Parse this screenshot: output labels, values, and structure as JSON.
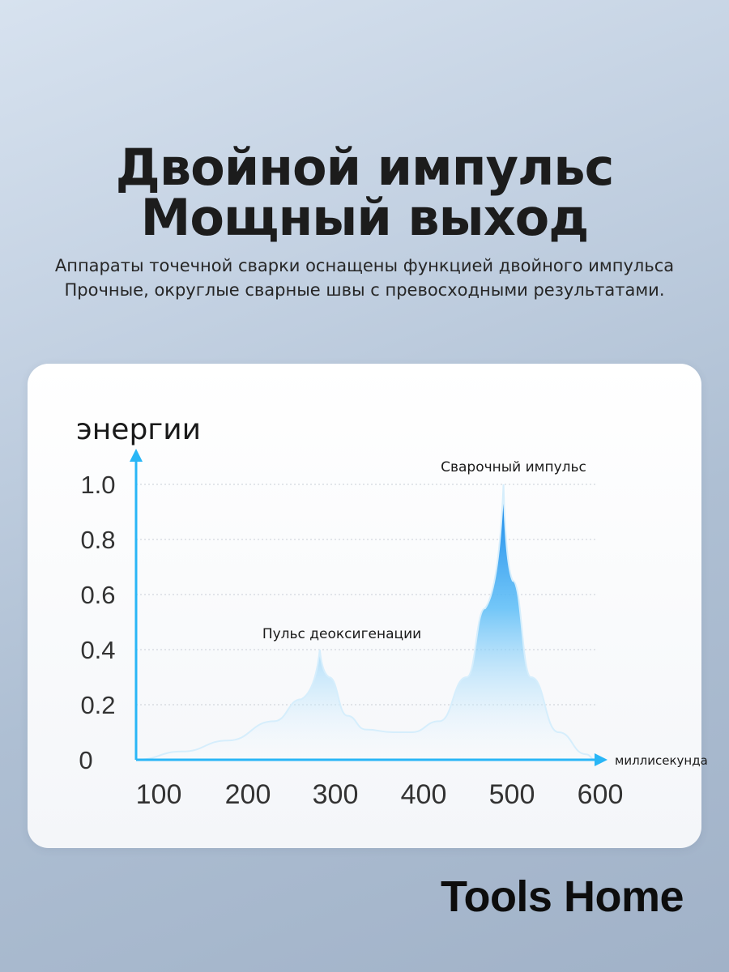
{
  "header": {
    "title_line1": "Двойной импульс",
    "title_line2": "Мощный выход",
    "subtitle_line1": "Аппараты точечной сварки оснащены функцией двойного импульса",
    "subtitle_line2": "Прочные, округлые сварные швы с превосходными результатами."
  },
  "brand": "Tools Home",
  "chart_data": {
    "type": "area",
    "ylabel": "энергии",
    "xlabel": "миллисекунда",
    "x_ticks": [
      "100",
      "200",
      "300",
      "400",
      "500",
      "600"
    ],
    "y_ticks": [
      "0",
      "0.2",
      "0.4",
      "0.6",
      "0.8",
      "1.0"
    ],
    "xlim": [
      100,
      600
    ],
    "ylim": [
      0,
      1.0
    ],
    "grid": "horizontal dotted",
    "series": [
      {
        "x": [
          100,
          150,
          200,
          250,
          280,
          300,
          310,
          330,
          350,
          380,
          400,
          430,
          460,
          480,
          500,
          510,
          530,
          560,
          590,
          600
        ],
        "y": [
          0.0,
          0.03,
          0.07,
          0.14,
          0.22,
          0.4,
          0.3,
          0.16,
          0.11,
          0.1,
          0.1,
          0.14,
          0.3,
          0.55,
          1.0,
          0.65,
          0.3,
          0.1,
          0.02,
          0.0
        ]
      }
    ],
    "annotations": [
      {
        "text": "Пульс деоксигенации",
        "x": 300,
        "y": 0.4
      },
      {
        "text": "Сварочный импульс",
        "x": 500,
        "y": 1.0
      }
    ],
    "colors": {
      "axis": "#29b6f6",
      "fill_top": "#0a7fe8",
      "fill_bottom": "#ffffff",
      "grid": "#c9ced6"
    }
  }
}
